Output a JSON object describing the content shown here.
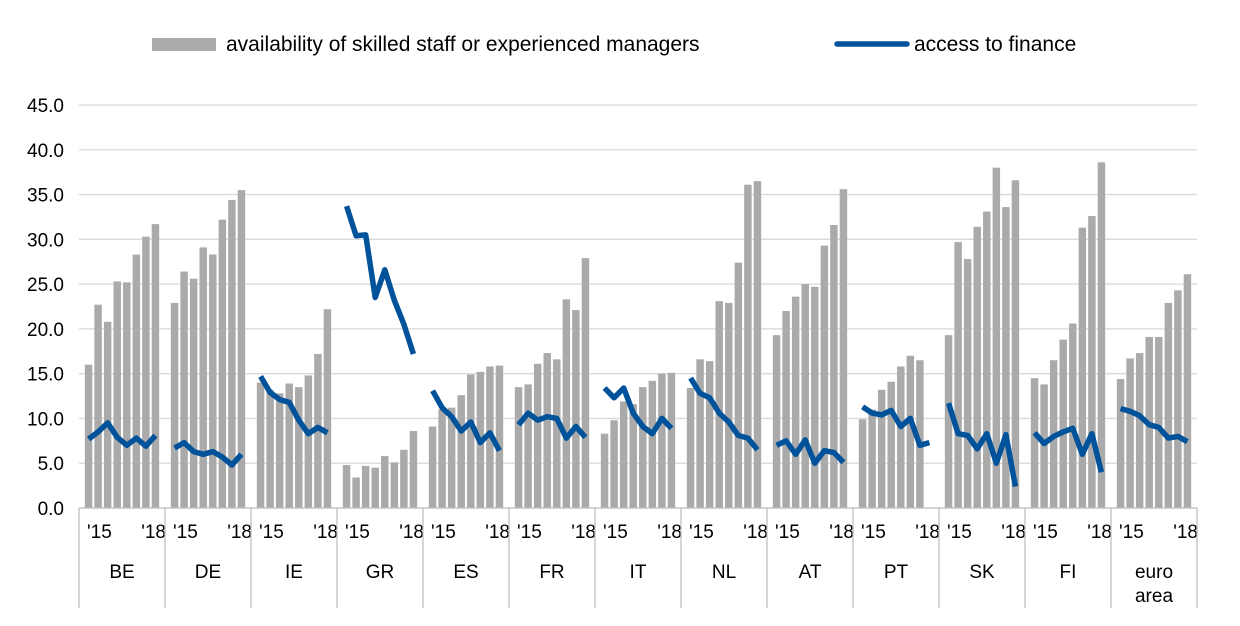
{
  "chart_data": {
    "type": "bar",
    "title": "",
    "xlabel": "",
    "ylabel": "",
    "ylim": [
      0,
      45
    ],
    "yticks": [
      "0.0",
      "5.0",
      "10.0",
      "15.0",
      "20.0",
      "25.0",
      "30.0",
      "35.0",
      "40.0",
      "45.0"
    ],
    "grid": true,
    "legend_position": "top",
    "legend": [
      {
        "name": "availability of skilled staff or experienced managers",
        "kind": "bar",
        "color": "#aaaaaa"
      },
      {
        "name": "access to finance",
        "kind": "line",
        "color": "#00529b"
      }
    ],
    "year_start_label": "'15",
    "year_end_label": "'18",
    "groups": [
      {
        "label": [
          "BE"
        ],
        "bars": [
          16.0,
          22.7,
          20.8,
          25.3,
          25.2,
          28.3,
          30.3,
          31.7
        ],
        "line": [
          7.7,
          8.5,
          9.5,
          7.9,
          7.0,
          7.8,
          6.9,
          8.1
        ]
      },
      {
        "label": [
          "DE"
        ],
        "bars": [
          22.9,
          26.4,
          25.6,
          29.1,
          28.3,
          32.2,
          34.4,
          35.5
        ],
        "line": [
          6.7,
          7.3,
          6.3,
          6.0,
          6.3,
          5.7,
          4.8,
          6.0
        ]
      },
      {
        "label": [
          "IE"
        ],
        "bars": [
          14.0,
          13.2,
          12.8,
          13.9,
          13.5,
          14.8,
          17.2,
          22.2
        ],
        "line": [
          14.7,
          12.9,
          12.1,
          11.8,
          9.8,
          8.3,
          9.0,
          8.4
        ]
      },
      {
        "label": [
          "GR"
        ],
        "bars": [
          4.8,
          3.4,
          4.7,
          4.5,
          5.8,
          5.1,
          6.5,
          8.6
        ],
        "line": [
          33.7,
          30.4,
          30.5,
          23.5,
          26.6,
          23.2,
          20.5,
          17.2
        ]
      },
      {
        "label": [
          "ES"
        ],
        "bars": [
          9.1,
          11.0,
          11.2,
          12.6,
          14.9,
          15.2,
          15.8,
          15.9
        ],
        "line": [
          13.1,
          11.2,
          10.2,
          8.6,
          9.6,
          7.3,
          8.4,
          6.4
        ]
      },
      {
        "label": [
          "FR"
        ],
        "bars": [
          13.5,
          13.8,
          16.1,
          17.3,
          16.6,
          23.3,
          22.1,
          27.9
        ],
        "line": [
          9.3,
          10.6,
          9.8,
          10.2,
          10.0,
          7.8,
          9.1,
          7.9
        ]
      },
      {
        "label": [
          "IT"
        ],
        "bars": [
          8.3,
          9.8,
          11.9,
          11.6,
          13.5,
          14.2,
          15.0,
          15.1
        ],
        "line": [
          13.4,
          12.3,
          13.4,
          10.6,
          9.1,
          8.3,
          10.0,
          8.9
        ]
      },
      {
        "label": [
          "NL"
        ],
        "bars": [
          13.4,
          16.6,
          16.4,
          23.1,
          22.9,
          27.4,
          36.1,
          36.5
        ],
        "line": [
          14.5,
          12.8,
          12.3,
          10.6,
          9.6,
          8.1,
          7.8,
          6.5
        ]
      },
      {
        "label": [
          "AT"
        ],
        "bars": [
          19.3,
          22.0,
          23.6,
          25.0,
          24.7,
          29.3,
          31.6,
          35.6
        ],
        "line": [
          7.0,
          7.5,
          6.0,
          7.6,
          5.0,
          6.4,
          6.2,
          5.1
        ]
      },
      {
        "label": [
          "PT"
        ],
        "bars": [
          9.9,
          11.0,
          13.2,
          14.1,
          15.8,
          17.0,
          16.5,
          0
        ],
        "line": [
          11.3,
          10.6,
          10.4,
          10.9,
          9.1,
          10.0,
          7.0,
          7.3
        ]
      },
      {
        "label": [
          "SK"
        ],
        "bars": [
          19.3,
          29.7,
          27.8,
          31.4,
          33.1,
          38.0,
          33.6,
          36.6
        ],
        "line": [
          11.7,
          8.3,
          8.1,
          6.6,
          8.3,
          5.0,
          8.2,
          2.4
        ]
      },
      {
        "label": [
          "FI"
        ],
        "bars": [
          14.5,
          13.8,
          16.5,
          18.8,
          20.6,
          31.3,
          32.6,
          38.6
        ],
        "line": [
          8.4,
          7.2,
          8.0,
          8.5,
          8.9,
          6.0,
          8.3,
          4.0
        ]
      },
      {
        "label": [
          "euro",
          "area"
        ],
        "bars": [
          14.4,
          16.7,
          17.3,
          19.1,
          19.1,
          22.9,
          24.3,
          26.1
        ],
        "line": [
          11.1,
          10.8,
          10.3,
          9.3,
          9.0,
          7.8,
          8.0,
          7.4
        ]
      }
    ]
  }
}
